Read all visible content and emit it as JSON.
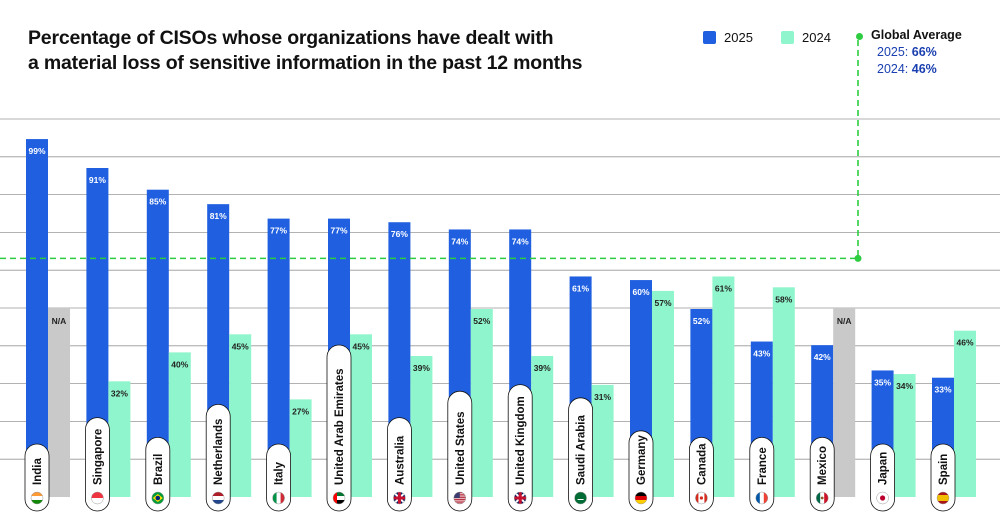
{
  "title_lines": [
    "Percentage of CISOs whose organizations have dealt with",
    "a material loss of sensitive information in the past 12 months"
  ],
  "legend": {
    "series_2025": "2025",
    "series_2024": "2024"
  },
  "global_average": {
    "title": "Global Average",
    "label_2025": "2025:",
    "value_2025_text": "66%",
    "label_2024": "2024:",
    "value_2024_text": "46%",
    "value_2025": 66
  },
  "colors": {
    "bar_2025": "#1f5fe0",
    "bar_2024": "#8ff5cc",
    "na": "#c9c9c9",
    "average_line": "#2ecc40",
    "grid": "#444444"
  },
  "chart_data": {
    "type": "bar",
    "title": "Percentage of CISOs whose organizations have dealt with a material loss of sensitive information in the past 12 months",
    "ylim": [
      0,
      104
    ],
    "grid": true,
    "categories": [
      "India",
      "Singapore",
      "Brazil",
      "Netherlands",
      "Italy",
      "United Arab Emirates",
      "Australia",
      "United States",
      "United Kingdom",
      "Saudi Arabia",
      "Germany",
      "Canada",
      "France",
      "Mexico",
      "Japan",
      "Spain"
    ],
    "series": [
      {
        "name": "2025",
        "values": [
          99,
          91,
          85,
          81,
          77,
          77,
          76,
          74,
          74,
          61,
          60,
          52,
          43,
          42,
          35,
          33
        ],
        "labels": [
          "99%",
          "91%",
          "85%",
          "81%",
          "77%",
          "77%",
          "76%",
          "74%",
          "74%",
          "61%",
          "60%",
          "52%",
          "43%",
          "42%",
          "35%",
          "33%"
        ]
      },
      {
        "name": "2024",
        "values": [
          null,
          32,
          40,
          45,
          27,
          45,
          39,
          52,
          39,
          31,
          57,
          61,
          58,
          null,
          34,
          46
        ],
        "labels": [
          "N/A",
          "32%",
          "40%",
          "45%",
          "27%",
          "45%",
          "39%",
          "52%",
          "39%",
          "31%",
          "57%",
          "61%",
          "58%",
          "N/A",
          "34%",
          "46%"
        ]
      }
    ],
    "na_label": "N/A",
    "flags": [
      "india-flag",
      "singapore-flag",
      "brazil-flag",
      "netherlands-flag",
      "italy-flag",
      "uae-flag",
      "australia-flag",
      "usa-flag",
      "uk-flag",
      "saudi-arabia-flag",
      "germany-flag",
      "canada-flag",
      "france-flag",
      "mexico-flag",
      "japan-flag",
      "spain-flag"
    ]
  }
}
